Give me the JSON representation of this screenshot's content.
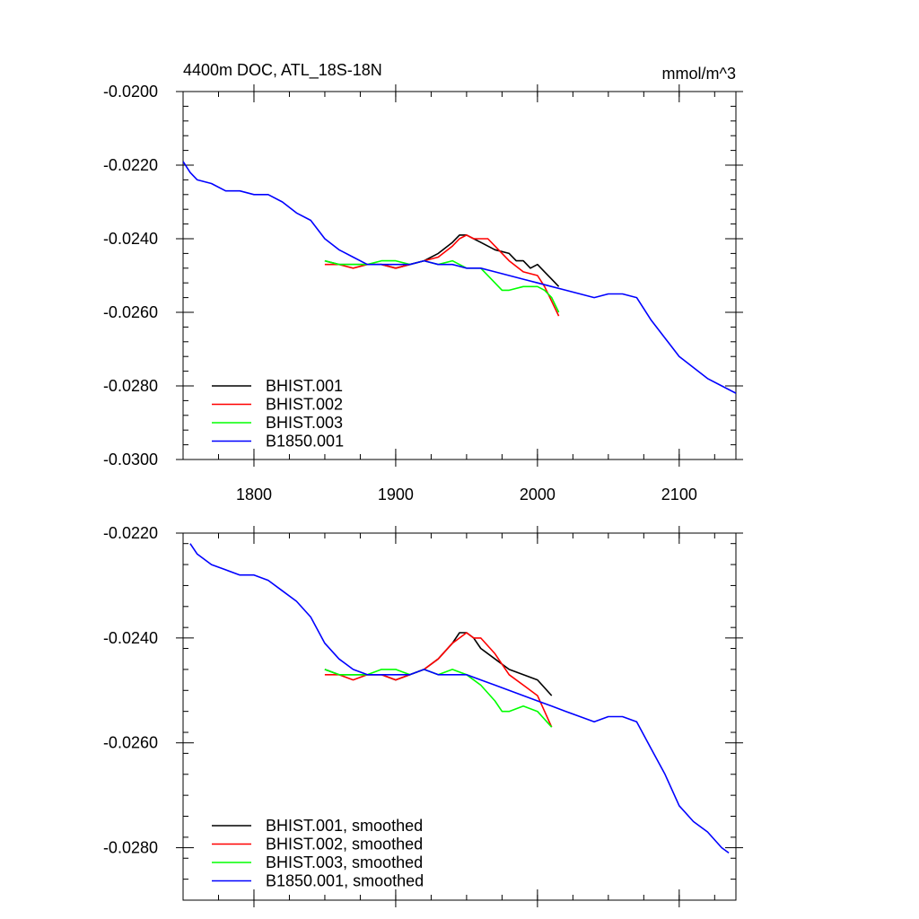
{
  "figure": {
    "title_left": "4400m DOC, ATL_18S-18N",
    "title_right": "mmol/m^3"
  },
  "chart_data": [
    {
      "type": "line",
      "xlim": [
        1750,
        2140
      ],
      "ylim": [
        -0.03,
        -0.02
      ],
      "yticks": [
        -0.03,
        -0.028,
        -0.026,
        -0.024,
        -0.022,
        -0.02
      ],
      "ytick_labels": [
        "-0.0300",
        "-0.0280",
        "-0.0260",
        "-0.0240",
        "-0.0220",
        "-0.0200"
      ],
      "xticks": [
        1800,
        1900,
        2000,
        2100
      ],
      "xtick_labels": [
        "1800",
        "1900",
        "2000",
        "2100"
      ],
      "grid": false,
      "legend": "bottom-left",
      "series": [
        {
          "name": "BHIST.001",
          "color": "#000000",
          "x": [
            1850,
            1860,
            1870,
            1880,
            1890,
            1900,
            1910,
            1920,
            1930,
            1940,
            1945,
            1950,
            1955,
            1960,
            1970,
            1980,
            1985,
            1990,
            1995,
            2000,
            2005,
            2010,
            2015
          ],
          "y": [
            -0.0246,
            -0.0247,
            -0.0247,
            -0.0247,
            -0.0247,
            -0.0248,
            -0.0247,
            -0.0246,
            -0.0244,
            -0.0241,
            -0.0239,
            -0.0239,
            -0.024,
            -0.0241,
            -0.0243,
            -0.0244,
            -0.0246,
            -0.0246,
            -0.0248,
            -0.0247,
            -0.0249,
            -0.0251,
            -0.0253
          ]
        },
        {
          "name": "BHIST.002",
          "color": "#ff0000",
          "x": [
            1850,
            1860,
            1870,
            1880,
            1890,
            1900,
            1910,
            1920,
            1930,
            1940,
            1945,
            1950,
            1955,
            1960,
            1965,
            1970,
            1980,
            1990,
            2000,
            2005,
            2010,
            2015
          ],
          "y": [
            -0.0247,
            -0.0247,
            -0.0248,
            -0.0247,
            -0.0247,
            -0.0248,
            -0.0247,
            -0.0246,
            -0.0245,
            -0.0242,
            -0.024,
            -0.0239,
            -0.024,
            -0.024,
            -0.024,
            -0.0242,
            -0.0246,
            -0.0249,
            -0.025,
            -0.0253,
            -0.0257,
            -0.0261
          ]
        },
        {
          "name": "BHIST.003",
          "color": "#00ff00",
          "x": [
            1850,
            1860,
            1870,
            1880,
            1890,
            1900,
            1910,
            1920,
            1930,
            1940,
            1950,
            1960,
            1970,
            1975,
            1980,
            1990,
            2000,
            2005,
            2010,
            2015
          ],
          "y": [
            -0.0246,
            -0.0247,
            -0.0247,
            -0.0247,
            -0.0246,
            -0.0246,
            -0.0247,
            -0.0246,
            -0.0247,
            -0.0246,
            -0.0248,
            -0.0248,
            -0.0252,
            -0.0254,
            -0.0254,
            -0.0253,
            -0.0253,
            -0.0254,
            -0.0256,
            -0.026
          ]
        },
        {
          "name": "B1850.001",
          "color": "#0000ff",
          "x": [
            1750,
            1755,
            1760,
            1770,
            1780,
            1790,
            1800,
            1810,
            1820,
            1830,
            1840,
            1850,
            1860,
            1870,
            1880,
            1890,
            1900,
            1910,
            1920,
            1930,
            1940,
            1950,
            1960,
            1970,
            1980,
            1990,
            2000,
            2010,
            2020,
            2030,
            2040,
            2050,
            2060,
            2070,
            2080,
            2090,
            2100,
            2110,
            2120,
            2130,
            2140
          ],
          "y": [
            -0.0219,
            -0.0222,
            -0.0224,
            -0.0225,
            -0.0227,
            -0.0227,
            -0.0228,
            -0.0228,
            -0.023,
            -0.0233,
            -0.0235,
            -0.024,
            -0.0243,
            -0.0245,
            -0.0247,
            -0.0247,
            -0.0247,
            -0.0247,
            -0.0246,
            -0.0247,
            -0.0247,
            -0.0248,
            -0.0248,
            -0.0249,
            -0.025,
            -0.0251,
            -0.0252,
            -0.0253,
            -0.0254,
            -0.0255,
            -0.0256,
            -0.0255,
            -0.0255,
            -0.0256,
            -0.0262,
            -0.0267,
            -0.0272,
            -0.0275,
            -0.0278,
            -0.028,
            -0.0282
          ]
        }
      ]
    },
    {
      "type": "line",
      "xlim": [
        1750,
        2140
      ],
      "ylim": [
        -0.029,
        -0.022
      ],
      "yticks": [
        -0.028,
        -0.026,
        -0.024,
        -0.022
      ],
      "ytick_labels": [
        "-0.0280",
        "-0.0260",
        "-0.0240",
        "-0.0220"
      ],
      "xticks": [
        1800,
        1900,
        2000,
        2100
      ],
      "xtick_labels": [],
      "grid": false,
      "legend": "bottom-left",
      "series": [
        {
          "name": "BHIST.001, smoothed",
          "color": "#000000",
          "x": [
            1850,
            1860,
            1870,
            1880,
            1890,
            1900,
            1910,
            1920,
            1930,
            1940,
            1945,
            1950,
            1955,
            1960,
            1970,
            1980,
            1990,
            2000,
            2010
          ],
          "y": [
            -0.0246,
            -0.0247,
            -0.0247,
            -0.0247,
            -0.0247,
            -0.0248,
            -0.0247,
            -0.0246,
            -0.0244,
            -0.0241,
            -0.0239,
            -0.0239,
            -0.024,
            -0.0242,
            -0.0244,
            -0.0246,
            -0.0247,
            -0.0248,
            -0.0251
          ]
        },
        {
          "name": "BHIST.002, smoothed",
          "color": "#ff0000",
          "x": [
            1850,
            1860,
            1870,
            1880,
            1890,
            1900,
            1910,
            1920,
            1930,
            1940,
            1945,
            1950,
            1955,
            1960,
            1970,
            1980,
            1990,
            2000,
            2010
          ],
          "y": [
            -0.0247,
            -0.0247,
            -0.0248,
            -0.0247,
            -0.0247,
            -0.0248,
            -0.0247,
            -0.0246,
            -0.0244,
            -0.0241,
            -0.024,
            -0.0239,
            -0.024,
            -0.024,
            -0.0243,
            -0.0247,
            -0.0249,
            -0.0251,
            -0.0257
          ]
        },
        {
          "name": "BHIST.003, smoothed",
          "color": "#00ff00",
          "x": [
            1850,
            1860,
            1870,
            1880,
            1890,
            1900,
            1910,
            1920,
            1930,
            1940,
            1950,
            1960,
            1970,
            1975,
            1980,
            1990,
            2000,
            2010
          ],
          "y": [
            -0.0246,
            -0.0247,
            -0.0247,
            -0.0247,
            -0.0246,
            -0.0246,
            -0.0247,
            -0.0246,
            -0.0247,
            -0.0246,
            -0.0247,
            -0.0249,
            -0.0252,
            -0.0254,
            -0.0254,
            -0.0253,
            -0.0254,
            -0.0257
          ]
        },
        {
          "name": "B1850.001, smoothed",
          "color": "#0000ff",
          "x": [
            1755,
            1760,
            1770,
            1780,
            1790,
            1800,
            1810,
            1820,
            1830,
            1840,
            1850,
            1860,
            1870,
            1880,
            1890,
            1900,
            1910,
            1920,
            1930,
            1940,
            1950,
            1960,
            1970,
            1980,
            1990,
            2000,
            2010,
            2020,
            2030,
            2040,
            2050,
            2060,
            2070,
            2080,
            2090,
            2100,
            2110,
            2120,
            2130,
            2135
          ],
          "y": [
            -0.0222,
            -0.0224,
            -0.0226,
            -0.0227,
            -0.0228,
            -0.0228,
            -0.0229,
            -0.0231,
            -0.0233,
            -0.0236,
            -0.0241,
            -0.0244,
            -0.0246,
            -0.0247,
            -0.0247,
            -0.0247,
            -0.0247,
            -0.0246,
            -0.0247,
            -0.0247,
            -0.0247,
            -0.0248,
            -0.0249,
            -0.025,
            -0.0251,
            -0.0252,
            -0.0253,
            -0.0254,
            -0.0255,
            -0.0256,
            -0.0255,
            -0.0255,
            -0.0256,
            -0.0261,
            -0.0266,
            -0.0272,
            -0.0275,
            -0.0277,
            -0.028,
            -0.0281
          ]
        }
      ]
    }
  ]
}
